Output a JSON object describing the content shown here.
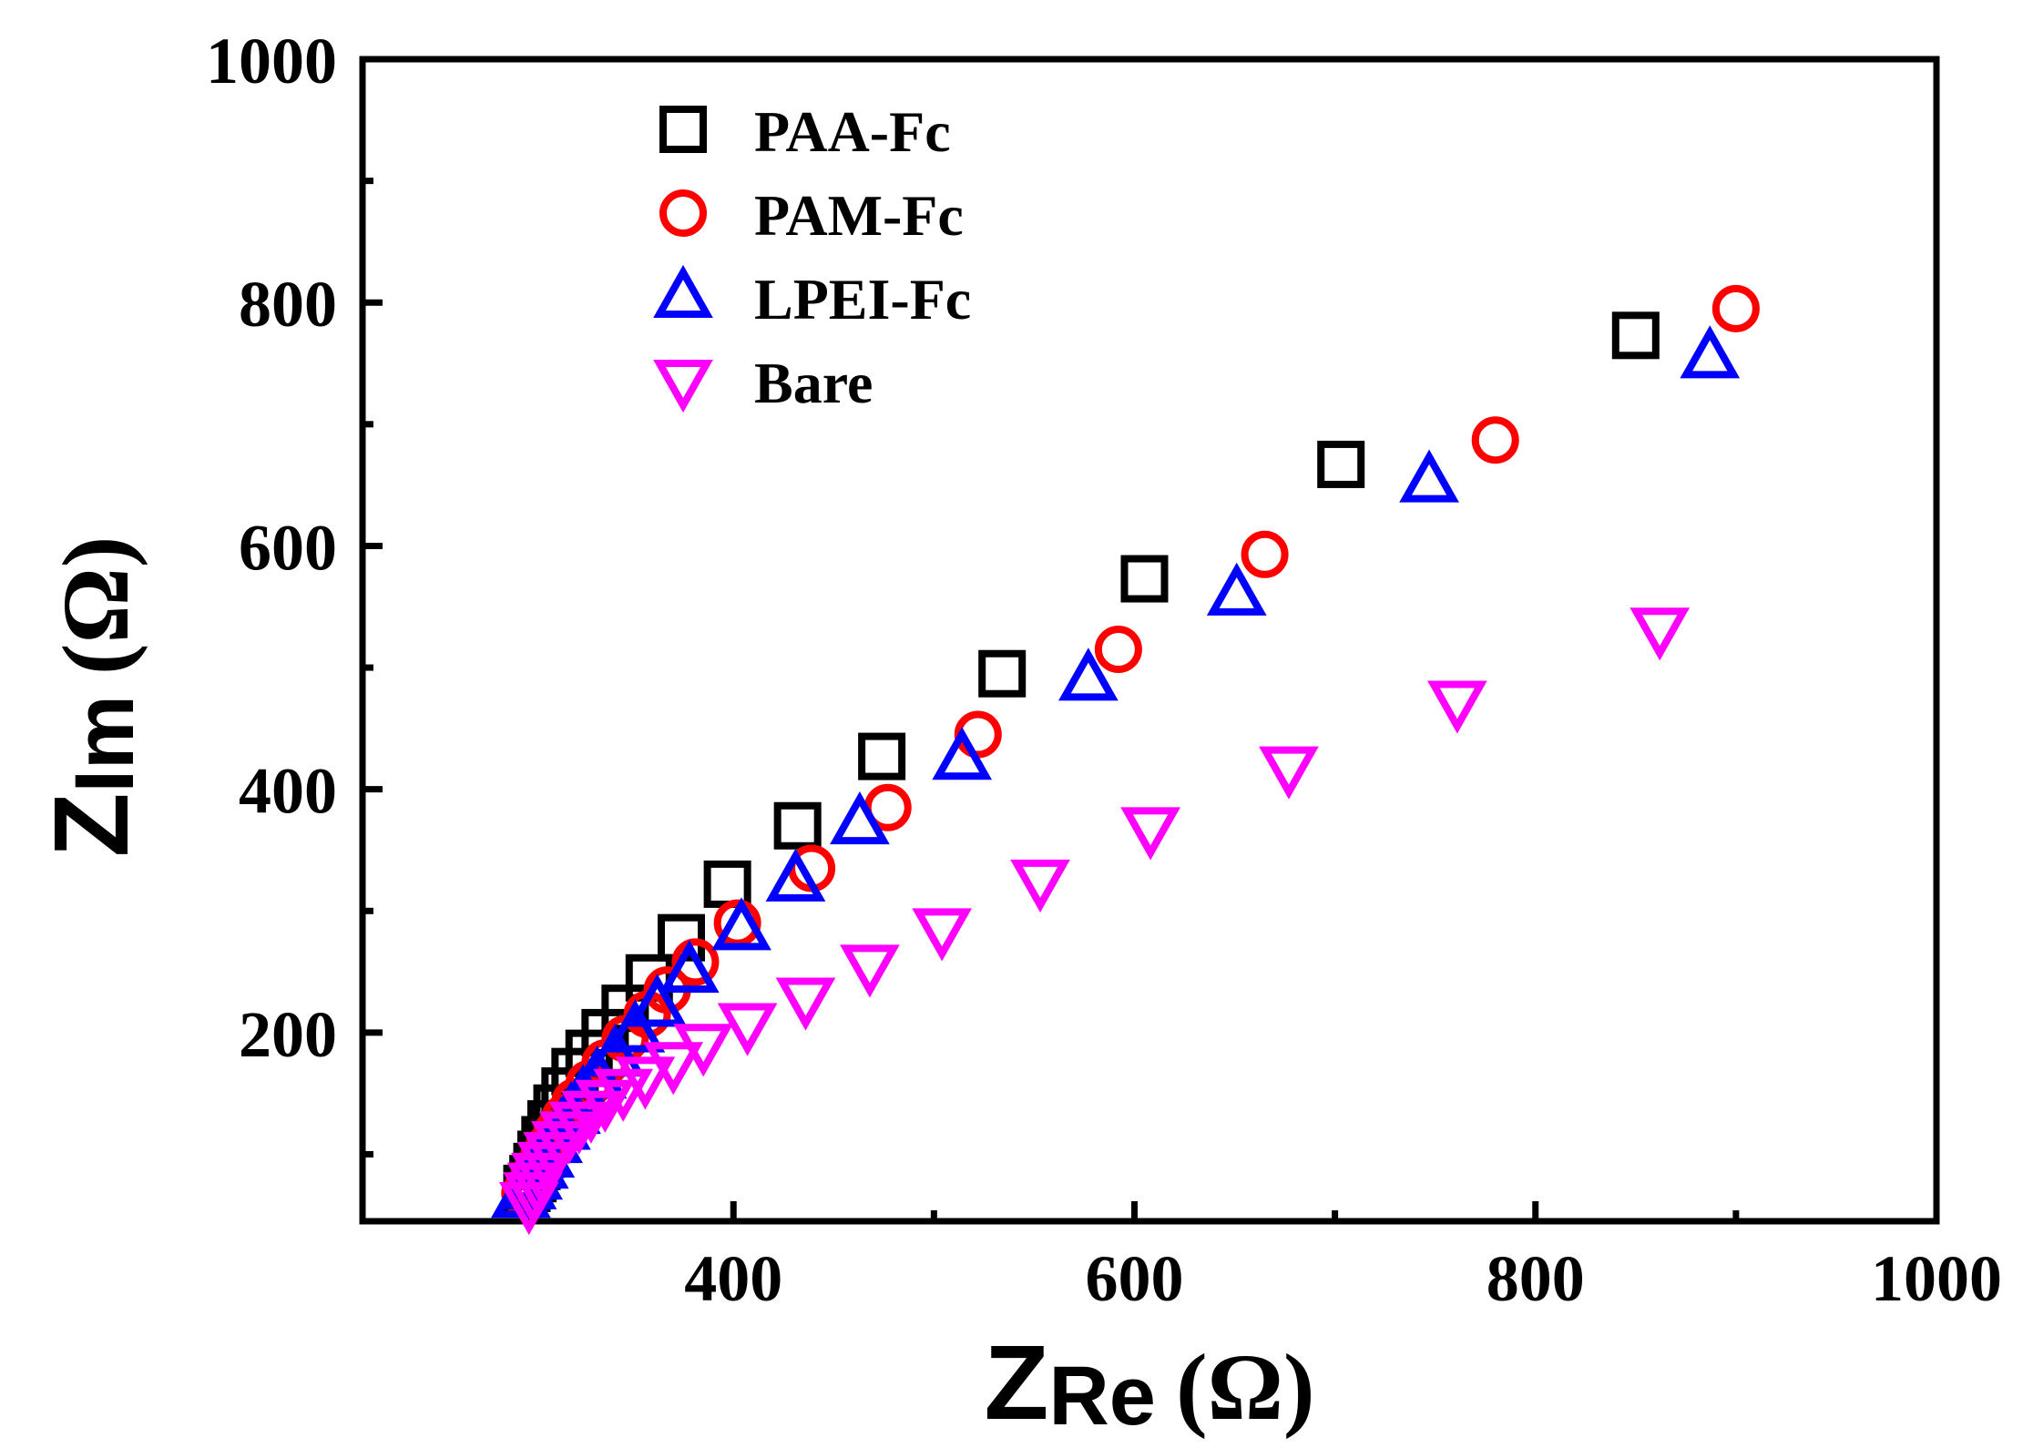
{
  "chart_data": {
    "type": "scatter",
    "title": "",
    "xlabel": {
      "main": "Z",
      "sub": "Re",
      "unit": "(Ω)"
    },
    "ylabel": {
      "main": "Z",
      "sub": "Im",
      "unit": "(Ω)"
    },
    "xlim": [
      215,
      1000
    ],
    "ylim": [
      45,
      1000
    ],
    "x_ticks": [
      400,
      600,
      800,
      1000
    ],
    "y_ticks": [
      200,
      400,
      600,
      800,
      1000
    ],
    "grid": false,
    "legend_position": "top-left",
    "series": [
      {
        "name": "PAA-Fc",
        "marker": "square",
        "color": "#000000",
        "points": [
          [
            297,
            72
          ],
          [
            300,
            80
          ],
          [
            302,
            90
          ],
          [
            304,
            100
          ],
          [
            306,
            112
          ],
          [
            309,
            125
          ],
          [
            312,
            138
          ],
          [
            316,
            152
          ],
          [
            321,
            168
          ],
          [
            328,
            183
          ],
          [
            336,
            200
          ],
          [
            346,
            220
          ],
          [
            358,
            245
          ],
          [
            374,
            278
          ],
          [
            397,
            322
          ],
          [
            432,
            370
          ],
          [
            474,
            427
          ],
          [
            534,
            495
          ],
          [
            605,
            573
          ],
          [
            703,
            667
          ],
          [
            850,
            773
          ]
        ]
      },
      {
        "name": "PAM-Fc",
        "marker": "circle",
        "color": "#ff0000",
        "points": [
          [
            296,
            68
          ],
          [
            299,
            76
          ],
          [
            302,
            86
          ],
          [
            305,
            96
          ],
          [
            308,
            106
          ],
          [
            312,
            118
          ],
          [
            316,
            130
          ],
          [
            321,
            143
          ],
          [
            328,
            158
          ],
          [
            336,
            175
          ],
          [
            346,
            195
          ],
          [
            357,
            215
          ],
          [
            367,
            235
          ],
          [
            381,
            258
          ],
          [
            402,
            290
          ],
          [
            439,
            335
          ],
          [
            477,
            385
          ],
          [
            522,
            445
          ],
          [
            592,
            515
          ],
          [
            665,
            593
          ],
          [
            780,
            687
          ],
          [
            900,
            795
          ]
        ]
      },
      {
        "name": "LPEI-Fc",
        "marker": "triangle-up",
        "color": "#0000ff",
        "points": [
          [
            294,
            65
          ],
          [
            297,
            72
          ],
          [
            300,
            80
          ],
          [
            303,
            89
          ],
          [
            306,
            98
          ],
          [
            310,
            110
          ],
          [
            314,
            121
          ],
          [
            319,
            134
          ],
          [
            325,
            148
          ],
          [
            332,
            163
          ],
          [
            341,
            181
          ],
          [
            351,
            201
          ],
          [
            362,
            222
          ],
          [
            378,
            250
          ],
          [
            404,
            285
          ],
          [
            431,
            325
          ],
          [
            463,
            372
          ],
          [
            514,
            425
          ],
          [
            577,
            490
          ],
          [
            651,
            560
          ],
          [
            747,
            653
          ],
          [
            887,
            755
          ]
        ]
      },
      {
        "name": "Bare",
        "marker": "triangle-down",
        "color": "#ff00ff",
        "points": [
          [
            298,
            60
          ],
          [
            300,
            68
          ],
          [
            302,
            76
          ],
          [
            304,
            84
          ],
          [
            307,
            93
          ],
          [
            310,
            101
          ],
          [
            314,
            110
          ],
          [
            318,
            118
          ],
          [
            323,
            126
          ],
          [
            329,
            135
          ],
          [
            336,
            144
          ],
          [
            345,
            153
          ],
          [
            356,
            163
          ],
          [
            370,
            175
          ],
          [
            385,
            190
          ],
          [
            407,
            207
          ],
          [
            436,
            228
          ],
          [
            468,
            255
          ],
          [
            504,
            285
          ],
          [
            553,
            325
          ],
          [
            608,
            368
          ],
          [
            677,
            418
          ],
          [
            761,
            472
          ],
          [
            862,
            532
          ]
        ]
      }
    ]
  }
}
